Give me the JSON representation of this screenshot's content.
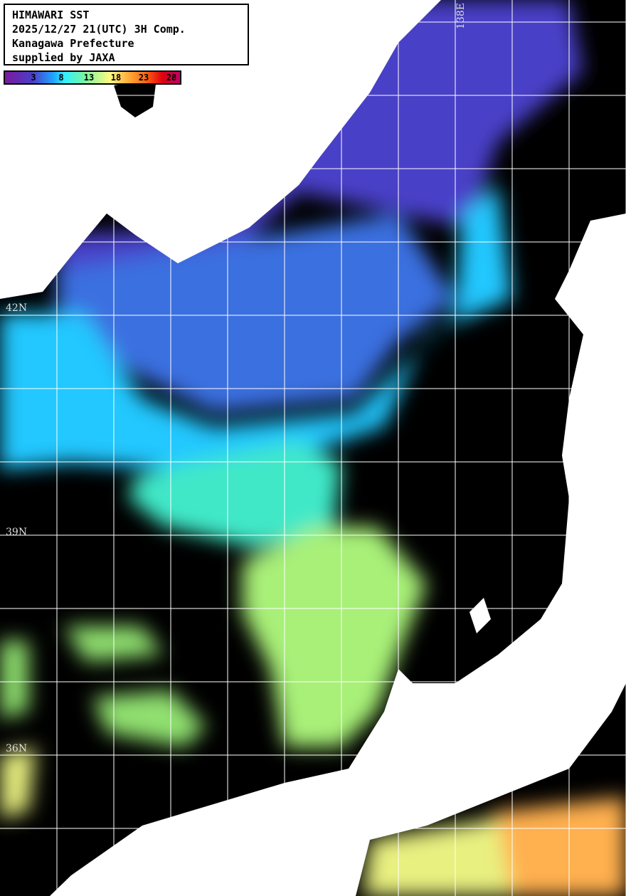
{
  "header": {
    "lines": [
      "HIMAWARI SST",
      "2025/12/27 21(UTC) 3H Comp.",
      "Kanagawa Prefecture",
      "supplied by JAXA"
    ]
  },
  "colorbar": {
    "ticks": [
      "3",
      "8",
      "13",
      "18",
      "23",
      "28"
    ],
    "colors": [
      "#7a1a9e",
      "#1ea8ff",
      "#30f0ff",
      "#7cf5a0",
      "#fffa80",
      "#ffb040",
      "#e00010",
      "#c0006a"
    ]
  },
  "grid_labels": {
    "lat": [
      "42N",
      "39N",
      "36N"
    ],
    "lon": [
      "138E"
    ]
  },
  "colors": {
    "land": "#ffffff",
    "no_data": "#000000",
    "grid": "#ffffff"
  }
}
